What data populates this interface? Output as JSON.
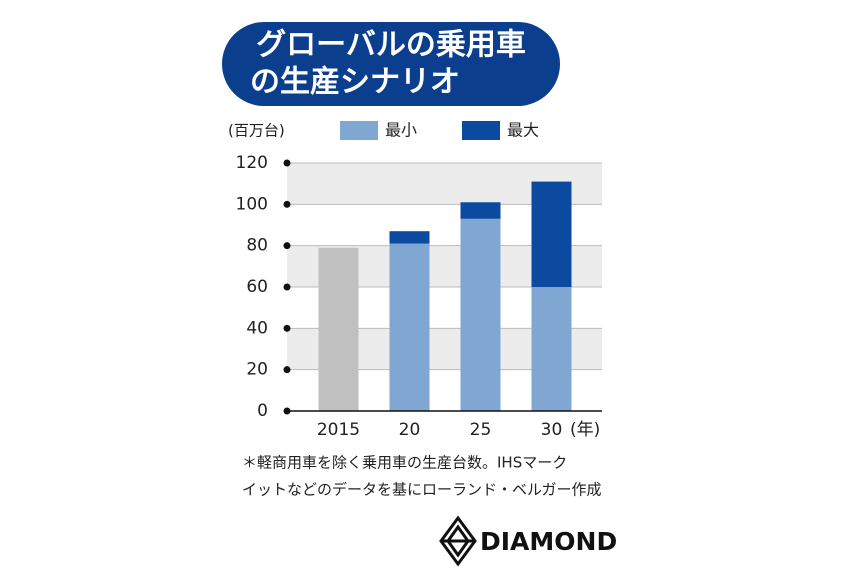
{
  "chart_data": {
    "type": "stacked-bar",
    "title": [
      "グローバルの乗用車",
      "の生産シナリオ"
    ],
    "y_label": "(百万台)",
    "x_label": "(年)",
    "categories": [
      "2015",
      "20",
      "25",
      "30"
    ],
    "series": [
      {
        "color": "#c0c0c0",
        "values": [
          79,
          null,
          null,
          null
        ]
      },
      {
        "name": "最小",
        "color": "#7fa7d1",
        "values": [
          null,
          81,
          93,
          60
        ]
      },
      {
        "name": "最大",
        "color": "#0b4a9e",
        "values": [
          null,
          6,
          8,
          51
        ]
      }
    ],
    "ylim": [
      0,
      120
    ],
    "yticks": [
      0,
      20,
      40,
      60,
      80,
      100,
      120
    ],
    "grid": true,
    "note": [
      "＊軽商用車を除く乗用車の生産台数。IHSマーク",
      "イットなどのデータを基にローランド・ベルガー作成"
    ],
    "logo": "DIAMOND"
  }
}
